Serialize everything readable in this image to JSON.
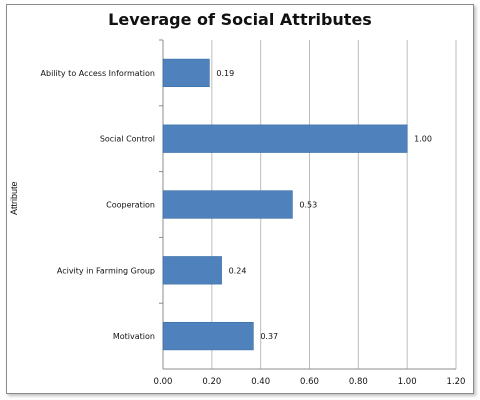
{
  "chart_data": {
    "type": "bar",
    "orientation": "horizontal",
    "title": "Leverage of Social Attributes",
    "xlabel": "",
    "ylabel": "Attribute",
    "categories": [
      "Ability to Access Information",
      "Social Control",
      "Cooperation",
      "Acivity in Farming Group",
      "Motivation"
    ],
    "values": [
      0.19,
      1.0,
      0.53,
      0.24,
      0.37
    ],
    "value_labels": [
      "0.19",
      "1.00",
      "0.53",
      "0.24",
      "0.37"
    ],
    "xlim": [
      0,
      1.2
    ],
    "xticks": [
      "0.00",
      "0.20",
      "0.40",
      "0.60",
      "0.80",
      "1.00",
      "1.20"
    ],
    "grid": "vertical",
    "bar_color": "#4f81bd"
  }
}
